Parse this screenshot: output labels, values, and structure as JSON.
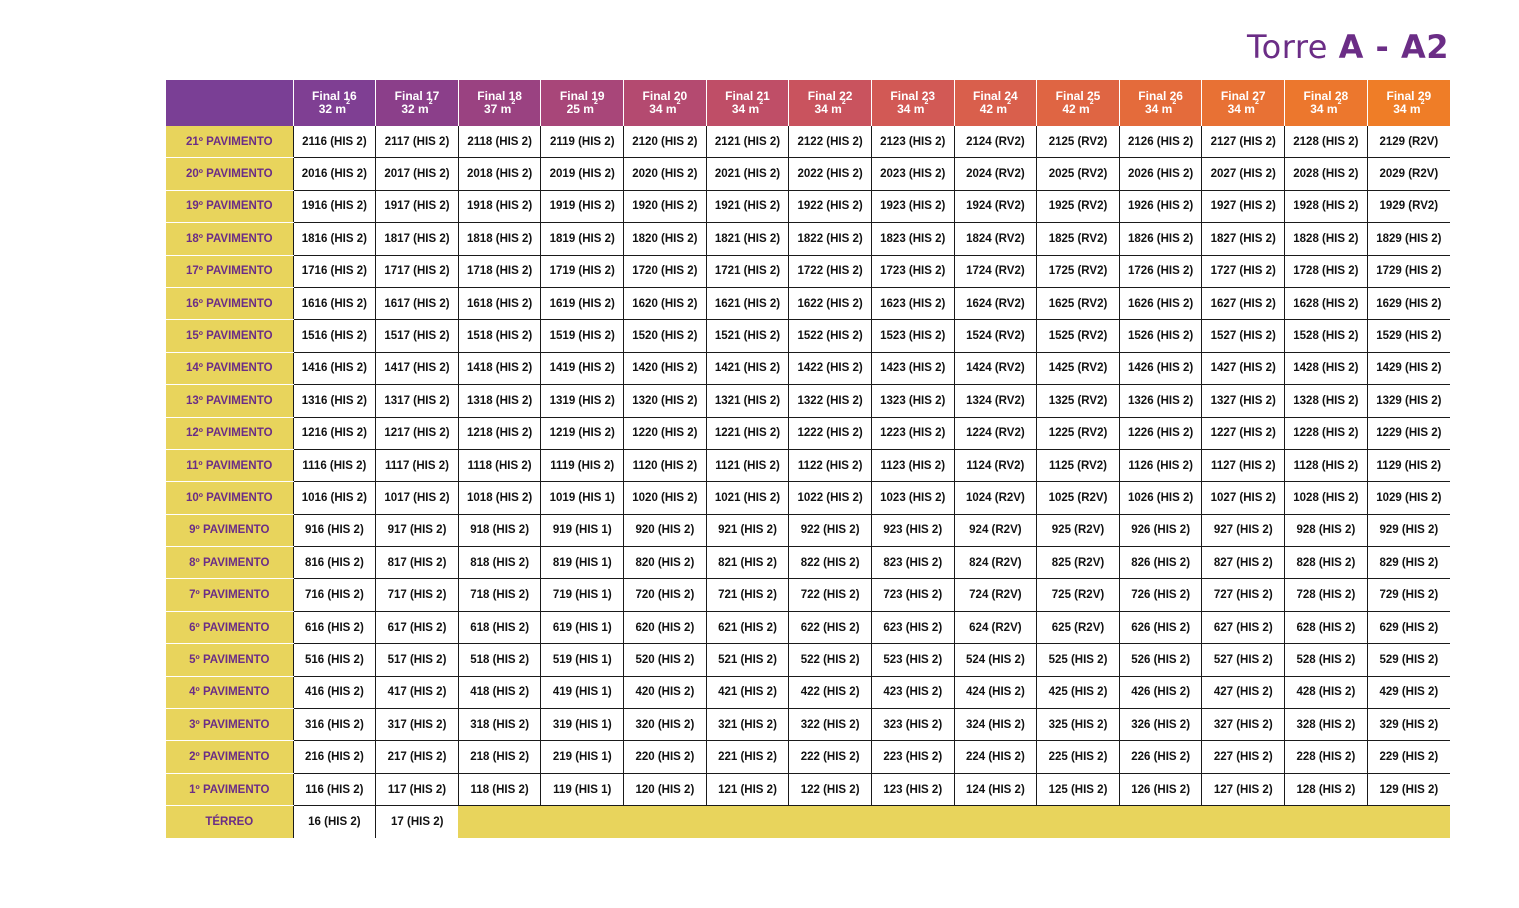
{
  "title": {
    "prefix": "Torre",
    "name": "A - A2"
  },
  "columns": [
    {
      "label": "Final 16",
      "area": "32 m",
      "color": "#7f3f93"
    },
    {
      "label": "Final 17",
      "area": "32 m",
      "color": "#8b3f8a"
    },
    {
      "label": "Final 18",
      "area": "37 m",
      "color": "#9a4281"
    },
    {
      "label": "Final 19",
      "area": "25 m",
      "color": "#a84679"
    },
    {
      "label": "Final 20",
      "area": "34 m",
      "color": "#b44a70"
    },
    {
      "label": "Final 21",
      "area": "34 m",
      "color": "#bf4e67"
    },
    {
      "label": "Final 22",
      "area": "34 m",
      "color": "#c9535e"
    },
    {
      "label": "Final 23",
      "area": "34 m",
      "color": "#d25955"
    },
    {
      "label": "Final 24",
      "area": "42 m",
      "color": "#d95f4c"
    },
    {
      "label": "Final 25",
      "area": "42 m",
      "color": "#df6543"
    },
    {
      "label": "Final 26",
      "area": "34 m",
      "color": "#e46b3b"
    },
    {
      "label": "Final 27",
      "area": "34 m",
      "color": "#e87134"
    },
    {
      "label": "Final 28",
      "area": "34 m",
      "color": "#ec772d"
    },
    {
      "label": "Final 29",
      "area": "34 m",
      "color": "#ef7d27"
    }
  ],
  "header_first_color": "#7a3f95",
  "rows": [
    {
      "floor": "21º PAVIMENTO",
      "cells": [
        "2116 (HIS 2)",
        "2117 (HIS 2)",
        "2118 (HIS 2)",
        "2119 (HIS 2)",
        "2120 (HIS 2)",
        "2121 (HIS 2)",
        "2122 (HIS 2)",
        "2123 (HIS 2)",
        "2124 (RV2)",
        "2125 (RV2)",
        "2126 (HIS 2)",
        "2127 (HIS 2)",
        "2128 (HIS 2)",
        "2129 (R2V)"
      ]
    },
    {
      "floor": "20º PAVIMENTO",
      "cells": [
        "2016 (HIS 2)",
        "2017 (HIS 2)",
        "2018 (HIS 2)",
        "2019 (HIS 2)",
        "2020 (HIS 2)",
        "2021 (HIS 2)",
        "2022 (HIS 2)",
        "2023 (HIS 2)",
        "2024 (RV2)",
        "2025 (RV2)",
        "2026 (HIS 2)",
        "2027 (HIS 2)",
        "2028 (HIS 2)",
        "2029 (R2V)"
      ]
    },
    {
      "floor": "19º PAVIMENTO",
      "cells": [
        "1916 (HIS 2)",
        "1917 (HIS 2)",
        "1918 (HIS 2)",
        "1919 (HIS 2)",
        "1920 (HIS 2)",
        "1921 (HIS 2)",
        "1922 (HIS 2)",
        "1923 (HIS 2)",
        "1924 (RV2)",
        "1925 (RV2)",
        "1926 (HIS 2)",
        "1927 (HIS 2)",
        "1928 (HIS 2)",
        "1929 (RV2)"
      ]
    },
    {
      "floor": "18º PAVIMENTO",
      "cells": [
        "1816 (HIS 2)",
        "1817 (HIS 2)",
        "1818 (HIS 2)",
        "1819 (HIS 2)",
        "1820 (HIS 2)",
        "1821 (HIS 2)",
        "1822 (HIS 2)",
        "1823 (HIS 2)",
        "1824 (RV2)",
        "1825 (RV2)",
        "1826 (HIS 2)",
        "1827 (HIS 2)",
        "1828 (HIS 2)",
        "1829 (HIS 2)"
      ]
    },
    {
      "floor": "17º PAVIMENTO",
      "cells": [
        "1716 (HIS 2)",
        "1717 (HIS 2)",
        "1718 (HIS 2)",
        "1719 (HIS 2)",
        "1720 (HIS 2)",
        "1721 (HIS 2)",
        "1722 (HIS 2)",
        "1723 (HIS 2)",
        "1724 (RV2)",
        "1725 (RV2)",
        "1726 (HIS 2)",
        "1727 (HIS 2)",
        "1728 (HIS 2)",
        "1729 (HIS 2)"
      ]
    },
    {
      "floor": "16º PAVIMENTO",
      "cells": [
        "1616 (HIS 2)",
        "1617 (HIS 2)",
        "1618 (HIS 2)",
        "1619 (HIS 2)",
        "1620 (HIS 2)",
        "1621 (HIS 2)",
        "1622 (HIS 2)",
        "1623 (HIS 2)",
        "1624 (RV2)",
        "1625 (RV2)",
        "1626 (HIS 2)",
        "1627 (HIS 2)",
        "1628 (HIS 2)",
        "1629 (HIS 2)"
      ]
    },
    {
      "floor": "15º PAVIMENTO",
      "cells": [
        "1516 (HIS 2)",
        "1517 (HIS 2)",
        "1518 (HIS 2)",
        "1519 (HIS 2)",
        "1520 (HIS 2)",
        "1521 (HIS 2)",
        "1522 (HIS 2)",
        "1523 (HIS 2)",
        "1524 (RV2)",
        "1525 (RV2)",
        "1526 (HIS 2)",
        "1527 (HIS 2)",
        "1528 (HIS 2)",
        "1529 (HIS 2)"
      ]
    },
    {
      "floor": "14º PAVIMENTO",
      "cells": [
        "1416 (HIS 2)",
        "1417 (HIS 2)",
        "1418 (HIS 2)",
        "1419 (HIS 2)",
        "1420 (HIS 2)",
        "1421 (HIS 2)",
        "1422 (HIS 2)",
        "1423 (HIS 2)",
        "1424 (RV2)",
        "1425 (RV2)",
        "1426 (HIS 2)",
        "1427 (HIS 2)",
        "1428 (HIS 2)",
        "1429 (HIS 2)"
      ]
    },
    {
      "floor": "13º PAVIMENTO",
      "cells": [
        "1316 (HIS 2)",
        "1317 (HIS 2)",
        "1318 (HIS 2)",
        "1319 (HIS 2)",
        "1320 (HIS 2)",
        "1321 (HIS 2)",
        "1322 (HIS 2)",
        "1323 (HIS 2)",
        "1324 (RV2)",
        "1325 (RV2)",
        "1326 (HIS 2)",
        "1327 (HIS 2)",
        "1328 (HIS 2)",
        "1329 (HIS 2)"
      ]
    },
    {
      "floor": "12º PAVIMENTO",
      "cells": [
        "1216 (HIS 2)",
        "1217 (HIS 2)",
        "1218 (HIS 2)",
        "1219 (HIS 2)",
        "1220 (HIS 2)",
        "1221 (HIS 2)",
        "1222 (HIS 2)",
        "1223 (HIS 2)",
        "1224 (RV2)",
        "1225 (RV2)",
        "1226 (HIS 2)",
        "1227 (HIS 2)",
        "1228 (HIS 2)",
        "1229 (HIS 2)"
      ]
    },
    {
      "floor": "11º PAVIMENTO",
      "cells": [
        "1116 (HIS 2)",
        "1117 (HIS 2)",
        "1118 (HIS 2)",
        "1119 (HIS 2)",
        "1120 (HIS 2)",
        "1121 (HIS 2)",
        "1122 (HIS 2)",
        "1123 (HIS 2)",
        "1124 (RV2)",
        "1125 (RV2)",
        "1126 (HIS 2)",
        "1127 (HIS 2)",
        "1128 (HIS 2)",
        "1129 (HIS 2)"
      ]
    },
    {
      "floor": "10º PAVIMENTO",
      "cells": [
        "1016 (HIS 2)",
        "1017 (HIS 2)",
        "1018 (HIS 2)",
        "1019 (HIS 1)",
        "1020 (HIS 2)",
        "1021 (HIS 2)",
        "1022 (HIS 2)",
        "1023 (HIS 2)",
        "1024 (R2V)",
        "1025 (R2V)",
        "1026 (HIS 2)",
        "1027 (HIS 2)",
        "1028 (HIS 2)",
        "1029 (HIS 2)"
      ]
    },
    {
      "floor": "9º PAVIMENTO",
      "cells": [
        "916 (HIS 2)",
        "917 (HIS 2)",
        "918 (HIS 2)",
        "919 (HIS 1)",
        "920 (HIS 2)",
        "921 (HIS 2)",
        "922 (HIS 2)",
        "923 (HIS 2)",
        "924 (R2V)",
        "925 (R2V)",
        "926 (HIS 2)",
        "927 (HIS 2)",
        "928 (HIS 2)",
        "929 (HIS 2)"
      ]
    },
    {
      "floor": "8º PAVIMENTO",
      "cells": [
        "816 (HIS 2)",
        "817 (HIS 2)",
        "818 (HIS 2)",
        "819 (HIS 1)",
        "820 (HIS 2)",
        "821 (HIS 2)",
        "822 (HIS 2)",
        "823 (HIS 2)",
        "824 (R2V)",
        "825 (R2V)",
        "826 (HIS 2)",
        "827 (HIS 2)",
        "828 (HIS 2)",
        "829 (HIS 2)"
      ]
    },
    {
      "floor": "7º PAVIMENTO",
      "cells": [
        "716 (HIS 2)",
        "717 (HIS 2)",
        "718 (HIS 2)",
        "719 (HIS 1)",
        "720 (HIS 2)",
        "721 (HIS 2)",
        "722 (HIS 2)",
        "723 (HIS 2)",
        "724 (R2V)",
        "725 (R2V)",
        "726 (HIS 2)",
        "727 (HIS 2)",
        "728 (HIS 2)",
        "729 (HIS 2)"
      ]
    },
    {
      "floor": "6º PAVIMENTO",
      "cells": [
        "616 (HIS 2)",
        "617 (HIS 2)",
        "618 (HIS 2)",
        "619 (HIS 1)",
        "620 (HIS 2)",
        "621 (HIS 2)",
        "622 (HIS 2)",
        "623 (HIS 2)",
        "624 (R2V)",
        "625 (R2V)",
        "626 (HIS 2)",
        "627 (HIS 2)",
        "628 (HIS 2)",
        "629 (HIS 2)"
      ]
    },
    {
      "floor": "5º PAVIMENTO",
      "cells": [
        "516 (HIS 2)",
        "517 (HIS 2)",
        "518 (HIS 2)",
        "519 (HIS 1)",
        "520 (HIS 2)",
        "521 (HIS 2)",
        "522 (HIS 2)",
        "523 (HIS 2)",
        "524 (HIS 2)",
        "525 (HIS 2)",
        "526 (HIS 2)",
        "527 (HIS 2)",
        "528 (HIS 2)",
        "529 (HIS 2)"
      ]
    },
    {
      "floor": "4º PAVIMENTO",
      "cells": [
        "416 (HIS 2)",
        "417 (HIS 2)",
        "418 (HIS 2)",
        "419 (HIS 1)",
        "420 (HIS 2)",
        "421 (HIS 2)",
        "422 (HIS 2)",
        "423 (HIS 2)",
        "424 (HIS 2)",
        "425 (HIS 2)",
        "426 (HIS 2)",
        "427 (HIS 2)",
        "428 (HIS 2)",
        "429 (HIS 2)"
      ]
    },
    {
      "floor": "3º PAVIMENTO",
      "cells": [
        "316 (HIS 2)",
        "317 (HIS 2)",
        "318 (HIS 2)",
        "319 (HIS 1)",
        "320 (HIS 2)",
        "321 (HIS 2)",
        "322 (HIS 2)",
        "323 (HIS 2)",
        "324 (HIS 2)",
        "325 (HIS 2)",
        "326 (HIS 2)",
        "327 (HIS 2)",
        "328 (HIS 2)",
        "329 (HIS 2)"
      ]
    },
    {
      "floor": "2º PAVIMENTO",
      "cells": [
        "216 (HIS 2)",
        "217 (HIS 2)",
        "218 (HIS 2)",
        "219 (HIS 1)",
        "220 (HIS 2)",
        "221 (HIS 2)",
        "222 (HIS 2)",
        "223 (HIS 2)",
        "224 (HIS 2)",
        "225 (HIS 2)",
        "226 (HIS 2)",
        "227 (HIS 2)",
        "228 (HIS 2)",
        "229 (HIS 2)"
      ]
    },
    {
      "floor": "1º PAVIMENTO",
      "cells": [
        "116 (HIS 2)",
        "117 (HIS 2)",
        "118 (HIS 2)",
        "119 (HIS 1)",
        "120 (HIS 2)",
        "121 (HIS 2)",
        "122 (HIS 2)",
        "123 (HIS 2)",
        "124 (HIS 2)",
        "125 (HIS 2)",
        "126 (HIS 2)",
        "127 (HIS 2)",
        "128 (HIS 2)",
        "129 (HIS 2)"
      ]
    },
    {
      "floor": "TÉRREO",
      "cells": [
        "16 (HIS 2)",
        "17 (HIS 2)"
      ]
    }
  ],
  "colors": {
    "floor_bg": "#e8d45c",
    "floor_text": "#6b2d86",
    "title": "#6b2d86"
  }
}
